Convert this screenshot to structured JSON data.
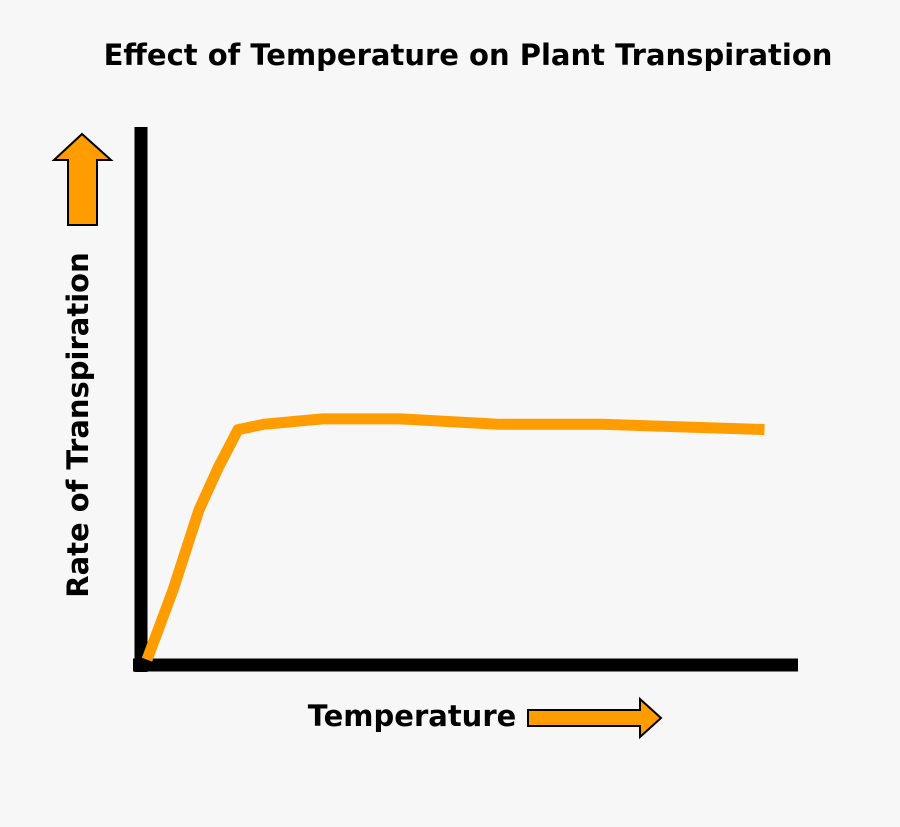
{
  "chart_data": {
    "type": "line",
    "title": "Effect of Temperature on Plant Transpiration",
    "x_label": "Temperature",
    "y_label": "Rate of Transpiration",
    "x": [
      0,
      4,
      8,
      11,
      14,
      18,
      27,
      39,
      54,
      70,
      95
    ],
    "series": [
      {
        "name": "Transpiration",
        "color": "#ff9c00",
        "values": [
          1,
          14,
          29,
          37,
          44,
          45,
          46,
          46,
          45,
          45,
          44
        ]
      }
    ],
    "xlim": [
      0,
      100
    ],
    "ylim": [
      0,
      100
    ]
  }
}
